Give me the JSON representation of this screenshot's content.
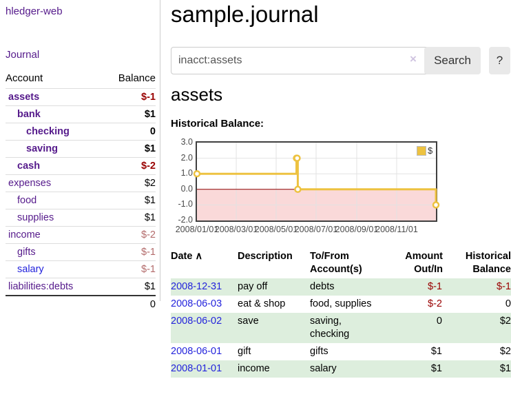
{
  "colors": {
    "purple_link": "#551a8b",
    "blue_link": "#2323dc",
    "negative_strong": "#990000",
    "negative_faded": "#b36b6b",
    "row_shade_green": "#ddeedd",
    "series_yellow": "#EDC240"
  },
  "sidebar": {
    "brand": "hledger-web",
    "nav_journal": "Journal",
    "col_account": "Account",
    "col_balance": "Balance",
    "accounts": [
      {
        "name": "assets",
        "level": 1,
        "bold": true,
        "balance": "$-1",
        "balance_style": "neg-strong",
        "link_color": "purple"
      },
      {
        "name": "bank",
        "level": 2,
        "bold": true,
        "balance": "$1",
        "balance_style": "pos",
        "link_color": "purple"
      },
      {
        "name": "checking",
        "level": 3,
        "bold": true,
        "balance": "0",
        "balance_style": "pos",
        "link_color": "purple"
      },
      {
        "name": "saving",
        "level": 3,
        "bold": true,
        "balance": "$1",
        "balance_style": "pos",
        "link_color": "purple"
      },
      {
        "name": "cash",
        "level": 2,
        "bold": true,
        "balance": "$-2",
        "balance_style": "neg-strong",
        "link_color": "purple"
      },
      {
        "name": "expenses",
        "level": 1,
        "bold": false,
        "balance": "$2",
        "balance_style": "pos",
        "link_color": "purple"
      },
      {
        "name": "food",
        "level": 2,
        "bold": false,
        "balance": "$1",
        "balance_style": "pos",
        "link_color": "purple"
      },
      {
        "name": "supplies",
        "level": 2,
        "bold": false,
        "balance": "$1",
        "balance_style": "pos",
        "link_color": "purple"
      },
      {
        "name": "income",
        "level": 1,
        "bold": false,
        "balance": "$-2",
        "balance_style": "neg-faded",
        "link_color": "purple"
      },
      {
        "name": "gifts",
        "level": 2,
        "bold": false,
        "balance": "$-1",
        "balance_style": "neg-faded",
        "link_color": "purple"
      },
      {
        "name": "salary",
        "level": 2,
        "bold": false,
        "balance": "$-1",
        "balance_style": "neg-faded",
        "link_color": "blue"
      },
      {
        "name": "liabilities:debts",
        "level": 1,
        "bold": false,
        "balance": "$1",
        "balance_style": "pos",
        "link_color": "purple"
      }
    ],
    "total": "0"
  },
  "main": {
    "title": "sample.journal",
    "search": {
      "value": "inacct:assets",
      "clear_icon": "×",
      "button_label": "Search",
      "help_label": "?"
    },
    "account_heading": "assets",
    "chart_label": "Historical Balance:"
  },
  "chart_data": {
    "type": "line",
    "step": true,
    "title": "Historical Balance",
    "series": [
      {
        "name": "$",
        "color": "#EDC240",
        "points": [
          [
            "2008-01-01",
            1
          ],
          [
            "2008-06-01",
            2
          ],
          [
            "2008-06-02",
            2
          ],
          [
            "2008-06-03",
            0
          ],
          [
            "2008-12-31",
            -1
          ]
        ]
      }
    ],
    "xlim": [
      "2008-01-01",
      "2008-12-31"
    ],
    "ylim": [
      -2,
      3
    ],
    "y_ticks": [
      "3.0",
      "2.0",
      "1.0",
      "0.0",
      "-1.0",
      "-2.0"
    ],
    "x_ticks": [
      "2008/01/01",
      "2008/03/01",
      "2008/05/01",
      "2008/07/01",
      "2008/09/01",
      "2008/11/01"
    ],
    "grid": true,
    "legend_position": "top-right",
    "legend_label": "$",
    "negative_region_fill": "#fad9d9",
    "zero_line_color": "#8b0000",
    "grid_color": "#e2e2e2"
  },
  "register": {
    "headers": {
      "date": {
        "label": "Date",
        "sort_indicator": "∧"
      },
      "description": {
        "lines": [
          "Description"
        ]
      },
      "accounts": {
        "lines": [
          "To/From",
          "Account(s)"
        ]
      },
      "amount": {
        "lines": [
          "Amount",
          "Out/In"
        ]
      },
      "balance": {
        "lines": [
          "Historical",
          "Balance"
        ]
      }
    },
    "rows": [
      {
        "date": "2008-12-31",
        "description": "pay off",
        "accounts_lines": [
          "debts"
        ],
        "amount": "$-1",
        "amount_negative": true,
        "balance": "$-1",
        "balance_negative": true,
        "shaded": true
      },
      {
        "date": "2008-06-03",
        "description": "eat & shop",
        "accounts_lines": [
          "food, supplies"
        ],
        "amount": "$-2",
        "amount_negative": true,
        "balance": "0",
        "balance_negative": false,
        "shaded": false
      },
      {
        "date": "2008-06-02",
        "description": "save",
        "accounts_lines": [
          "saving,",
          "checking"
        ],
        "amount": "0",
        "amount_negative": false,
        "balance": "$2",
        "balance_negative": false,
        "shaded": true
      },
      {
        "date": "2008-06-01",
        "description": "gift",
        "accounts_lines": [
          "gifts"
        ],
        "amount": "$1",
        "amount_negative": false,
        "balance": "$2",
        "balance_negative": false,
        "shaded": false
      },
      {
        "date": "2008-01-01",
        "description": "income",
        "accounts_lines": [
          "salary"
        ],
        "amount": "$1",
        "amount_negative": false,
        "balance": "$1",
        "balance_negative": false,
        "shaded": true
      }
    ]
  }
}
